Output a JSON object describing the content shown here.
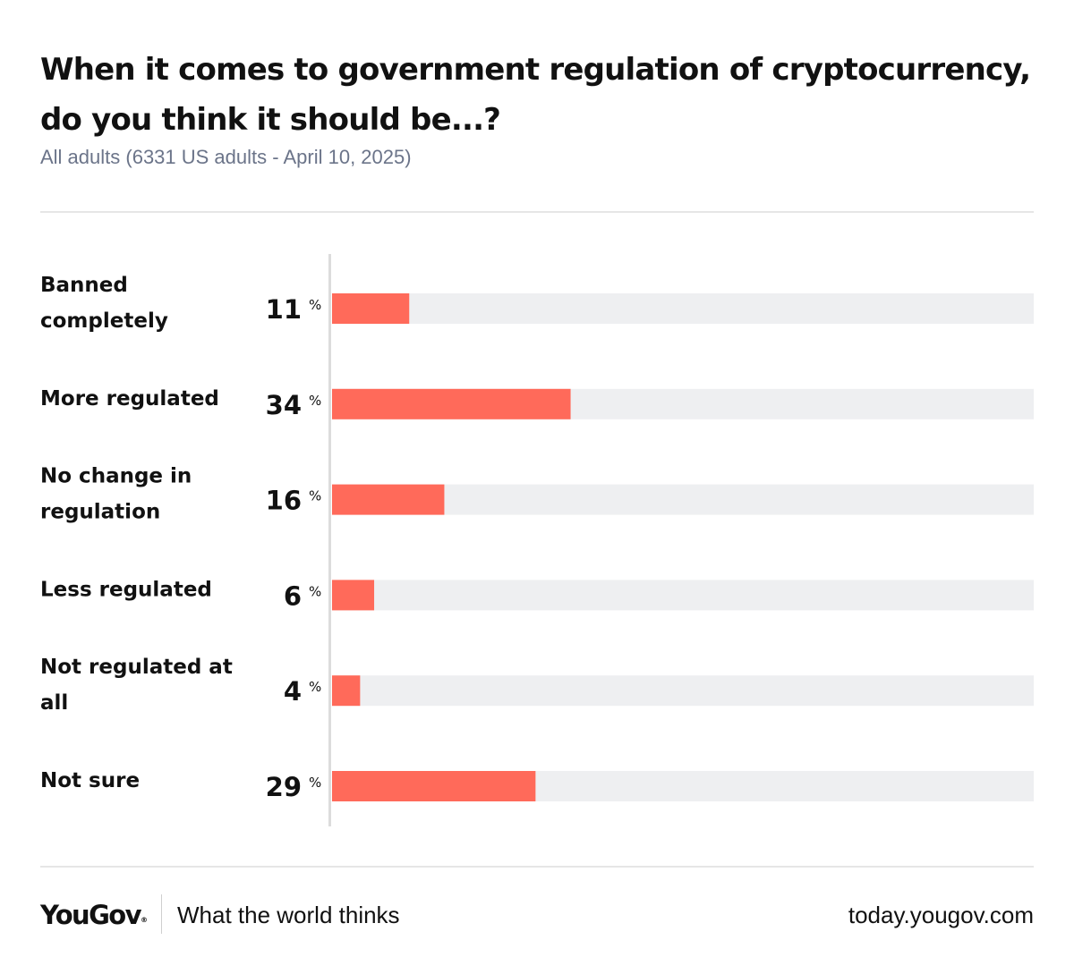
{
  "header": {
    "title": "When it comes to government regulation of cryptocurrency, do you think it should be...?",
    "subtitle": "All adults (6331 US adults - April 10, 2025)"
  },
  "chart_data": {
    "type": "bar",
    "orientation": "horizontal",
    "categories": [
      "Banned completely",
      "More regulated",
      "No change in regulation",
      "Less regulated",
      "Not regulated at all",
      "Not sure"
    ],
    "values": [
      11,
      34,
      16,
      6,
      4,
      29
    ],
    "unit": "%",
    "xlim": [
      0,
      100
    ],
    "bar_color": "#ff6a5a",
    "track_color": "#eeeff1",
    "axis_color": "#dcdcdc"
  },
  "footer": {
    "logo": "YouGov",
    "logo_mark": "®",
    "tagline": "What the world thinks",
    "url": "today.yougov.com"
  }
}
